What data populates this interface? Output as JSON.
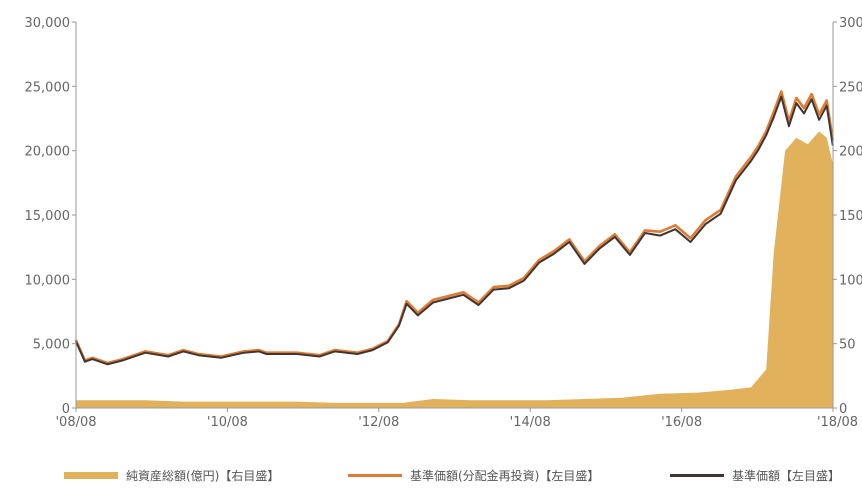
{
  "chart_data": {
    "type": "area",
    "title": "",
    "x_ticks": [
      "'08/08",
      "'10/08",
      "'12/08",
      "'14/08",
      "'16/08",
      "'18/08"
    ],
    "x_range": [
      2008.583,
      2018.583
    ],
    "left_axis": {
      "range": [
        0,
        30000
      ],
      "ticks": [
        "0",
        "5,000",
        "10,000",
        "15,000",
        "20,000",
        "25,000",
        "30,000"
      ]
    },
    "right_axis": {
      "range": [
        0,
        300
      ],
      "ticks": [
        "0",
        "50",
        "100",
        "150",
        "200",
        "250",
        "300"
      ]
    },
    "grid": false,
    "legend_position": "bottom",
    "series": [
      {
        "name": "純資産総額(億円)【右目盛】",
        "kind": "area",
        "axis": "right",
        "color": "#e2b15b",
        "x": [
          2008.58,
          2009.0,
          2009.5,
          2010.0,
          2010.5,
          2011.0,
          2011.5,
          2012.0,
          2012.5,
          2012.9,
          2013.3,
          2013.8,
          2014.3,
          2014.8,
          2015.3,
          2015.8,
          2016.3,
          2016.8,
          2017.2,
          2017.5,
          2017.7,
          2017.8,
          2017.95,
          2018.1,
          2018.25,
          2018.4,
          2018.5,
          2018.58
        ],
        "y": [
          6,
          6,
          6,
          5,
          5,
          5,
          5,
          4,
          4,
          4,
          7,
          6,
          6,
          6,
          7,
          8,
          11,
          12,
          14,
          16,
          30,
          120,
          200,
          210,
          205,
          215,
          210,
          190
        ]
      },
      {
        "name": "基準価額(分配金再投資)【左目盛】",
        "kind": "line",
        "axis": "left",
        "color": "#e07b33",
        "x": [
          2008.58,
          2008.7,
          2008.8,
          2009.0,
          2009.2,
          2009.5,
          2009.8,
          2010.0,
          2010.2,
          2010.5,
          2010.8,
          2011.0,
          2011.1,
          2011.3,
          2011.5,
          2011.8,
          2012.0,
          2012.3,
          2012.5,
          2012.7,
          2012.85,
          2012.95,
          2013.1,
          2013.3,
          2013.5,
          2013.7,
          2013.9,
          2014.1,
          2014.3,
          2014.5,
          2014.7,
          2014.9,
          2015.1,
          2015.3,
          2015.5,
          2015.7,
          2015.9,
          2016.1,
          2016.3,
          2016.5,
          2016.7,
          2016.9,
          2017.1,
          2017.3,
          2017.5,
          2017.6,
          2017.7,
          2017.8,
          2017.9,
          2018.0,
          2018.1,
          2018.2,
          2018.3,
          2018.4,
          2018.5,
          2018.58
        ],
        "y": [
          5300,
          3700,
          3900,
          3500,
          3800,
          4400,
          4100,
          4500,
          4200,
          4000,
          4400,
          4500,
          4300,
          4300,
          4300,
          4100,
          4500,
          4300,
          4600,
          5200,
          6500,
          8300,
          7400,
          8400,
          8700,
          9000,
          8200,
          9400,
          9500,
          10100,
          11500,
          12200,
          13100,
          11400,
          12600,
          13500,
          12100,
          13800,
          13700,
          14200,
          13200,
          14600,
          15400,
          18000,
          19500,
          20400,
          21500,
          23000,
          24600,
          22300,
          24100,
          23300,
          24400,
          22800,
          23900,
          20800
        ]
      },
      {
        "name": "基準価額【左目盛】",
        "kind": "line",
        "axis": "left",
        "color": "#3f3535",
        "x": [
          2008.58,
          2008.7,
          2008.8,
          2009.0,
          2009.2,
          2009.5,
          2009.8,
          2010.0,
          2010.2,
          2010.5,
          2010.8,
          2011.0,
          2011.1,
          2011.3,
          2011.5,
          2011.8,
          2012.0,
          2012.3,
          2012.5,
          2012.7,
          2012.85,
          2012.95,
          2013.1,
          2013.3,
          2013.5,
          2013.7,
          2013.9,
          2014.1,
          2014.3,
          2014.5,
          2014.7,
          2014.9,
          2015.1,
          2015.3,
          2015.5,
          2015.7,
          2015.9,
          2016.1,
          2016.3,
          2016.5,
          2016.7,
          2016.9,
          2017.1,
          2017.3,
          2017.5,
          2017.6,
          2017.7,
          2017.8,
          2017.9,
          2018.0,
          2018.1,
          2018.2,
          2018.3,
          2018.4,
          2018.5,
          2018.58
        ],
        "y": [
          5200,
          3600,
          3800,
          3400,
          3700,
          4300,
          4000,
          4400,
          4100,
          3900,
          4300,
          4400,
          4200,
          4200,
          4200,
          4000,
          4400,
          4200,
          4500,
          5100,
          6400,
          8100,
          7200,
          8200,
          8500,
          8800,
          8000,
          9200,
          9300,
          9900,
          11300,
          12000,
          12900,
          11200,
          12400,
          13300,
          11900,
          13600,
          13400,
          13900,
          12900,
          14300,
          15100,
          17700,
          19200,
          20100,
          21200,
          22600,
          24200,
          21900,
          23700,
          22900,
          24000,
          22400,
          23500,
          20400
        ]
      }
    ]
  }
}
